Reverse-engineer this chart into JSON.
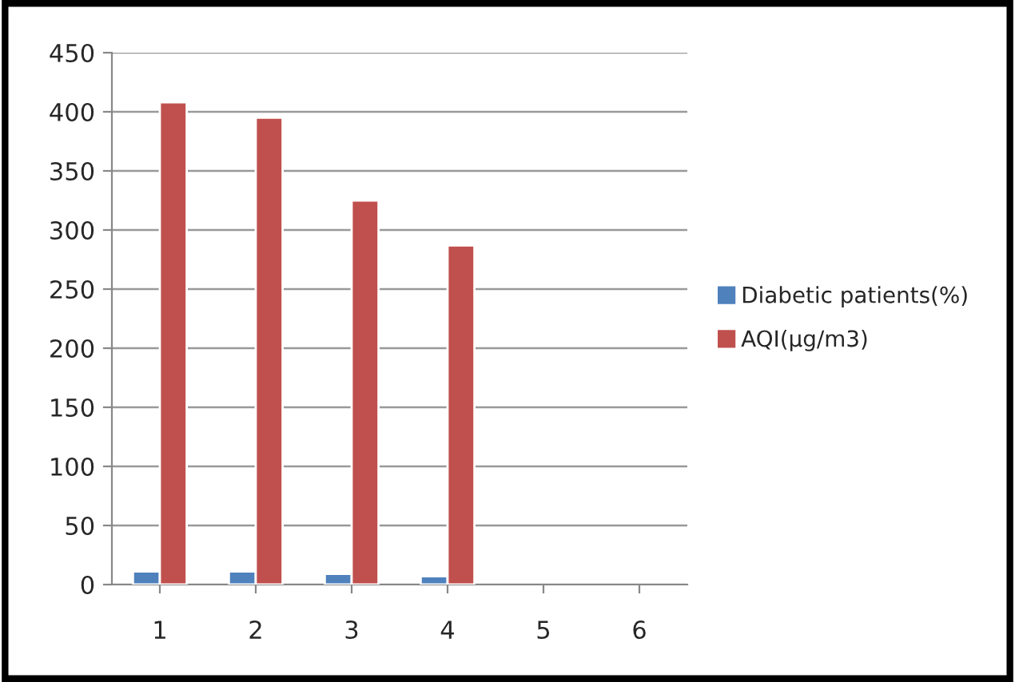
{
  "chart_data": {
    "type": "bar",
    "categories": [
      "1",
      "2",
      "3",
      "4",
      "5",
      "6"
    ],
    "series": [
      {
        "name": "Diabetic patients(%)",
        "color": "#4f81bd",
        "values": [
          11,
          11,
          9,
          7,
          null,
          null
        ]
      },
      {
        "name": "AQI(µg/m3)",
        "color": "#c0504d",
        "values": [
          408,
          395,
          325,
          287,
          null,
          null
        ]
      }
    ],
    "ylim": [
      0,
      450
    ],
    "yticks": [
      0,
      50,
      100,
      150,
      200,
      250,
      300,
      350,
      400,
      450
    ],
    "grid": "y",
    "legend": "right"
  }
}
